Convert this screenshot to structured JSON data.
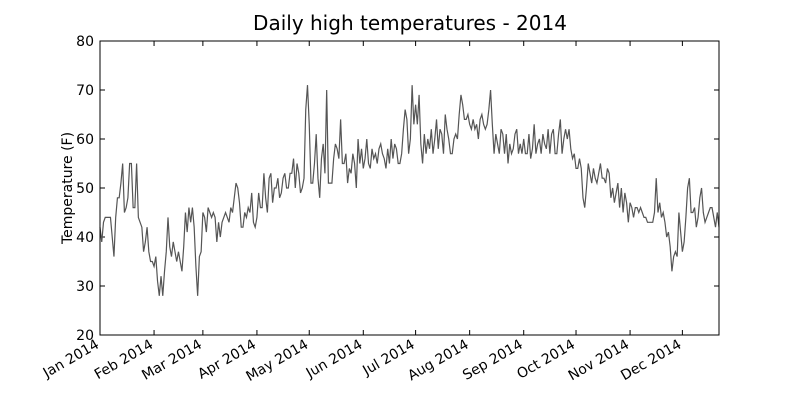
{
  "chart_data": {
    "type": "line",
    "title": "Daily high temperatures - 2014",
    "y_label": "Temperature (F)",
    "x": [
      0,
      1,
      2,
      3,
      4,
      5,
      6,
      7,
      8,
      9,
      10,
      11,
      12,
      13,
      14,
      15,
      16,
      17,
      18,
      19,
      20,
      21,
      22,
      23,
      24,
      25,
      26,
      27,
      28,
      29,
      30,
      31,
      32,
      33,
      34,
      35,
      36,
      37,
      38,
      39,
      40,
      41,
      42,
      43,
      44,
      45,
      46,
      47,
      48,
      49,
      50,
      51,
      52,
      53,
      54,
      55,
      56,
      57,
      58,
      59,
      60,
      61,
      62,
      63,
      64,
      65,
      66,
      67,
      68,
      69,
      70,
      71,
      72,
      73,
      74,
      75,
      76,
      77,
      78,
      79,
      80,
      81,
      82,
      83,
      84,
      85,
      86,
      87,
      88,
      89,
      90,
      91,
      92,
      93,
      94,
      95,
      96,
      97,
      98,
      99,
      100,
      101,
      102,
      103,
      104,
      105,
      106,
      107,
      108,
      109,
      110,
      111,
      112,
      113,
      114,
      115,
      116,
      117,
      118,
      119,
      120,
      121,
      122,
      123,
      124,
      125,
      126,
      127,
      128,
      129,
      130,
      131,
      132,
      133,
      134,
      135,
      136,
      137,
      138,
      139,
      140,
      141,
      142,
      143,
      144,
      145,
      146,
      147,
      148,
      149,
      150,
      151,
      152,
      153,
      154,
      155,
      156,
      157,
      158,
      159,
      160,
      161,
      162,
      163,
      164,
      165,
      166,
      167,
      168,
      169,
      170,
      171,
      172,
      173,
      174,
      175,
      176,
      177,
      178,
      179,
      180,
      181,
      182,
      183,
      184,
      185,
      186,
      187,
      188,
      189,
      190,
      191,
      192,
      193,
      194,
      195,
      196,
      197,
      198,
      199,
      200,
      201,
      202,
      203,
      204,
      205,
      206,
      207,
      208,
      209,
      210,
      211,
      212,
      213,
      214,
      215,
      216,
      217,
      218,
      219,
      220,
      221,
      222,
      223,
      224,
      225,
      226,
      227,
      228,
      229,
      230,
      231,
      232,
      233,
      234,
      235,
      236,
      237,
      238,
      239,
      240,
      241,
      242,
      243,
      244,
      245,
      246,
      247,
      248,
      249,
      250,
      251,
      252,
      253,
      254,
      255,
      256,
      257,
      258,
      259,
      260,
      261,
      262,
      263,
      264,
      265,
      266,
      267,
      268,
      269,
      270,
      271,
      272,
      273,
      274,
      275,
      276,
      277,
      278,
      279,
      280,
      281,
      282,
      283,
      284,
      285,
      286,
      287,
      288,
      289,
      290,
      291,
      292,
      293,
      294,
      295,
      296,
      297,
      298,
      299,
      300,
      301,
      302,
      303,
      304,
      305,
      306,
      307,
      308,
      309,
      310,
      311,
      312,
      313,
      314,
      315,
      316,
      317,
      318,
      319,
      320,
      321,
      322,
      323,
      324,
      325,
      326,
      327,
      328,
      329,
      330,
      331,
      332,
      333,
      334,
      335,
      336,
      337,
      338,
      339,
      340,
      341,
      342,
      343,
      344,
      345,
      346,
      347,
      348,
      349,
      350,
      351,
      352,
      353,
      354,
      355
    ],
    "series": [
      {
        "color": "#555555",
        "values": [
          42,
          39,
          43,
          44,
          44,
          44,
          44,
          40,
          36,
          44,
          48,
          48,
          51,
          55,
          45,
          46,
          48,
          55,
          55,
          46,
          46,
          55,
          44,
          43,
          42,
          37,
          39,
          42,
          37,
          35,
          35,
          34,
          36,
          31,
          28,
          32,
          28,
          33,
          37,
          44,
          38,
          36,
          39,
          37,
          35,
          37,
          35,
          33,
          38,
          45,
          41,
          46,
          43,
          46,
          42,
          34,
          28,
          36,
          37,
          45,
          44,
          41,
          46,
          45,
          44,
          45,
          44,
          39,
          43,
          40,
          43,
          44,
          45,
          44,
          43,
          46,
          45,
          48,
          51,
          50,
          47,
          42,
          42,
          45,
          44,
          46,
          45,
          49,
          43,
          42,
          44,
          49,
          46,
          46,
          53,
          48,
          45,
          52,
          53,
          47,
          50,
          50,
          52,
          48,
          49,
          52,
          53,
          50,
          50,
          53,
          53,
          56,
          50,
          55,
          53,
          49,
          50,
          52,
          66,
          71,
          63,
          51,
          51,
          55,
          61,
          52,
          48,
          56,
          59,
          53,
          70,
          51,
          51,
          51,
          56,
          59,
          58,
          56,
          64,
          55,
          55,
          57,
          51,
          54,
          53,
          57,
          55,
          50,
          60,
          55,
          58,
          54,
          56,
          60,
          55,
          54,
          58,
          56,
          57,
          55,
          58,
          59,
          57,
          56,
          54,
          58,
          55,
          60,
          56,
          59,
          58,
          55,
          55,
          57,
          62,
          66,
          64,
          57,
          60,
          71,
          63,
          67,
          63,
          69,
          59,
          55,
          61,
          57,
          60,
          58,
          62,
          57,
          60,
          64,
          58,
          62,
          61,
          57,
          65,
          62,
          60,
          57,
          57,
          60,
          61,
          60,
          65,
          69,
          67,
          64,
          64,
          65,
          63,
          62,
          64,
          62,
          63,
          60,
          64,
          65,
          63,
          62,
          63,
          66,
          70,
          63,
          57,
          61,
          59,
          57,
          62,
          61,
          57,
          61,
          55,
          59,
          57,
          58,
          61,
          62,
          57,
          59,
          57,
          60,
          57,
          57,
          61,
          56,
          58,
          63,
          57,
          59,
          60,
          57,
          61,
          59,
          58,
          62,
          57,
          61,
          62,
          57,
          57,
          61,
          64,
          57,
          60,
          62,
          60,
          62,
          58,
          56,
          57,
          54,
          54,
          56,
          54,
          48,
          46,
          50,
          55,
          53,
          51,
          54,
          52,
          51,
          53,
          55,
          52,
          52,
          51,
          54,
          53,
          48,
          50,
          47,
          49,
          51,
          46,
          50,
          45,
          49,
          47,
          43,
          47,
          46,
          44,
          46,
          46,
          45,
          46,
          45,
          44,
          44,
          43,
          43,
          43,
          43,
          45,
          52,
          45,
          47,
          44,
          45,
          43,
          40,
          41,
          38,
          33,
          36,
          37,
          36,
          45,
          41,
          37,
          39,
          44,
          50,
          52,
          45,
          45,
          46,
          42,
          44,
          48,
          50,
          45,
          43,
          44,
          45,
          46,
          46,
          44,
          42,
          45,
          42
        ]
      }
    ],
    "xlim": [
      0,
      355
    ],
    "xticks": [
      {
        "value": 0,
        "label": "Jan 2014"
      },
      {
        "value": 31,
        "label": "Feb 2014"
      },
      {
        "value": 59,
        "label": "Mar 2014"
      },
      {
        "value": 90,
        "label": "Apr 2014"
      },
      {
        "value": 120,
        "label": "May 2014"
      },
      {
        "value": 151,
        "label": "Jun 2014"
      },
      {
        "value": 181,
        "label": "Jul 2014"
      },
      {
        "value": 212,
        "label": "Aug 2014"
      },
      {
        "value": 243,
        "label": "Sep 2014"
      },
      {
        "value": 273,
        "label": "Oct 2014"
      },
      {
        "value": 304,
        "label": "Nov 2014"
      },
      {
        "value": 334,
        "label": "Dec 2014"
      }
    ],
    "ylim": [
      20,
      80
    ],
    "yticks": [
      20,
      30,
      40,
      50,
      60,
      70,
      80
    ],
    "grid": false
  }
}
